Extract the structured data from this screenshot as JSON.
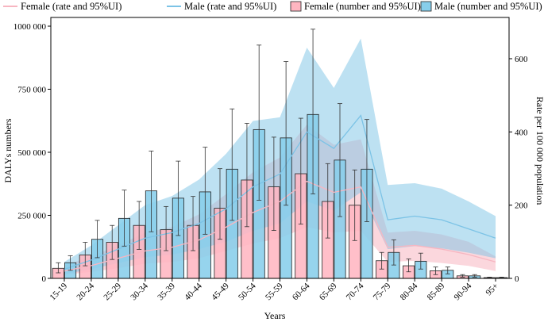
{
  "chart_data": {
    "type": "bar+area",
    "categories": [
      "15-19",
      "20-24",
      "25-29",
      "30-34",
      "35-39",
      "40-44",
      "45-49",
      "50-54",
      "55-59",
      "60-64",
      "65-69",
      "70-74",
      "75-79",
      "80-84",
      "85-89",
      "90-94",
      "95+"
    ],
    "xlabel": "Years",
    "ylabel_left": "DALYs numbers",
    "ylabel_right": "Rate per 100 000 population",
    "ylim_left": [
      0,
      1000000
    ],
    "ylim_right": [
      0,
      700
    ],
    "yticks_left": [
      0,
      250000,
      500000,
      750000,
      1000000
    ],
    "yticks_left_labels": [
      "0",
      "250 000",
      "500 000",
      "750 000",
      "1000 000"
    ],
    "yticks_right": [
      0,
      200,
      400,
      600
    ],
    "yticks_right_labels": [
      "0",
      "200",
      "400",
      "600"
    ],
    "legend": [
      {
        "label": "Female (rate and 95%UI)",
        "kind": "line",
        "color": "#f7b6c1"
      },
      {
        "label": "Male (rate and 95%UI)",
        "kind": "line",
        "color": "#7cc3e6"
      },
      {
        "label": "Female (number and 95%UI)",
        "kind": "box",
        "color": "#ffb6c1"
      },
      {
        "label": "Male (number and 95%UI)",
        "kind": "box",
        "color": "#87ceeb"
      }
    ],
    "bar_series": [
      {
        "name": "Female (number and 95%UI)",
        "color": "#ffb6c1",
        "values": [
          40000,
          93000,
          143000,
          210000,
          193000,
          210000,
          278000,
          390000,
          363000,
          415000,
          305000,
          290000,
          70000,
          50000,
          30000,
          10000,
          3000
        ],
        "lower": [
          22000,
          50000,
          75000,
          115000,
          110000,
          110000,
          155000,
          205000,
          190000,
          215000,
          160000,
          150000,
          37000,
          26000,
          15000,
          5000,
          1000
        ],
        "upper": [
          62000,
          143000,
          210000,
          305000,
          285000,
          325000,
          435000,
          615000,
          560000,
          635000,
          455000,
          430000,
          103000,
          77000,
          45000,
          15000,
          5000
        ]
      },
      {
        "name": "Male (number and 95%UI)",
        "color": "#87ceeb",
        "values": [
          62000,
          155000,
          238000,
          347000,
          318000,
          343000,
          433000,
          590000,
          557000,
          650000,
          469000,
          433000,
          103000,
          68000,
          32000,
          10000,
          3000
        ],
        "lower": [
          32000,
          82000,
          128000,
          185000,
          170000,
          175000,
          230000,
          310000,
          290000,
          335000,
          245000,
          225000,
          53000,
          37000,
          18000,
          5000,
          1000
        ],
        "upper": [
          90000,
          230000,
          350000,
          505000,
          465000,
          520000,
          672000,
          925000,
          860000,
          988000,
          693000,
          630000,
          153000,
          100000,
          45000,
          15000,
          5000
        ]
      }
    ],
    "rate_series": [
      {
        "name": "Female (rate and 95%UI)",
        "color": "#f7b6c1",
        "values": [
          20,
          35,
          55,
          75,
          85,
          105,
          140,
          180,
          210,
          265,
          235,
          250,
          85,
          90,
          80,
          65,
          45
        ],
        "lower": [
          10,
          18,
          28,
          40,
          45,
          55,
          75,
          95,
          110,
          140,
          125,
          130,
          45,
          48,
          42,
          34,
          20
        ],
        "upper": [
          35,
          60,
          90,
          125,
          140,
          175,
          230,
          290,
          330,
          420,
          365,
          380,
          125,
          130,
          120,
          100,
          60
        ]
      },
      {
        "name": "Male (rate and 95%UI)",
        "color": "#7cc3e6",
        "values": [
          25,
          50,
          80,
          110,
          125,
          150,
          190,
          250,
          285,
          400,
          355,
          445,
          160,
          170,
          160,
          135,
          110
        ],
        "lower": [
          12,
          25,
          42,
          58,
          65,
          80,
          100,
          130,
          150,
          210,
          185,
          235,
          80,
          88,
          82,
          70,
          55
        ],
        "upper": [
          45,
          90,
          145,
          200,
          225,
          270,
          340,
          430,
          440,
          630,
          520,
          655,
          255,
          260,
          245,
          210,
          170
        ]
      }
    ]
  }
}
